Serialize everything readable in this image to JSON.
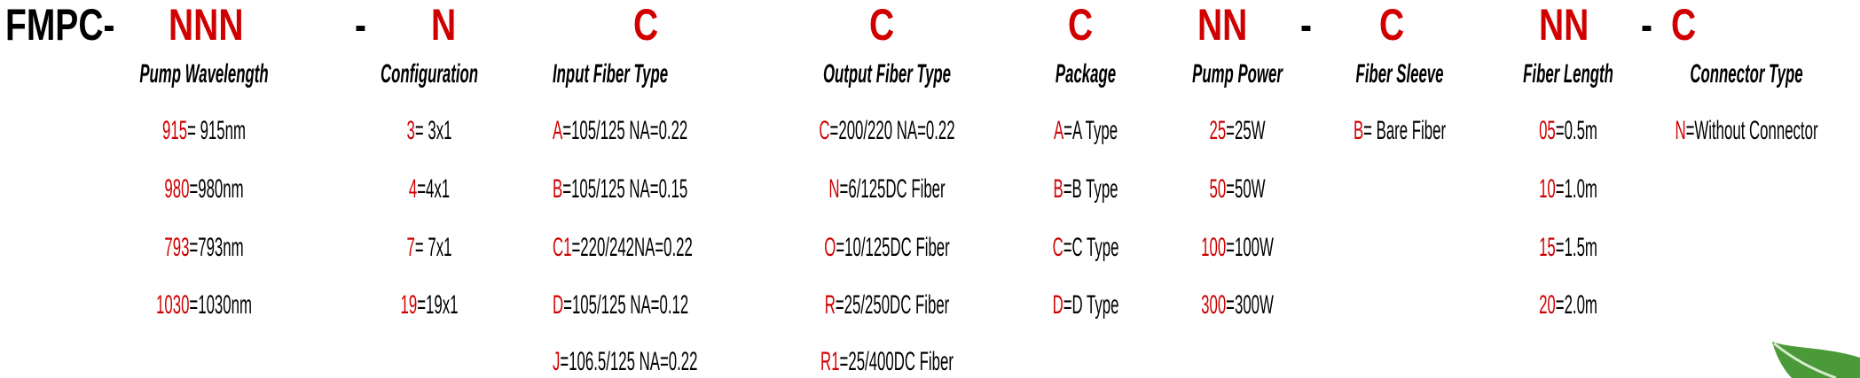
{
  "code_line": [
    {
      "text": "FMPC-",
      "color": "black"
    },
    {
      "text": "NNN",
      "color": "red"
    },
    {
      "text": "-",
      "color": "black"
    },
    {
      "text": "N",
      "color": "red"
    },
    {
      "text": "C",
      "color": "red"
    },
    {
      "text": "C",
      "color": "red"
    },
    {
      "text": "C",
      "color": "red"
    },
    {
      "text": "NN",
      "color": "red"
    },
    {
      "text": "-",
      "color": "black"
    },
    {
      "text": "C",
      "color": "red"
    },
    {
      "text": "NN",
      "color": "red"
    },
    {
      "text": "-",
      "color": "black"
    },
    {
      "text": "C",
      "color": "red"
    }
  ],
  "columns": [
    {
      "header": "Pump Wavelength",
      "items": [
        {
          "code": "915",
          "desc": "= 915nm"
        },
        {
          "code": "980",
          "desc": "=980nm"
        },
        {
          "code": "793",
          "desc": "=793nm"
        },
        {
          "code": "1030",
          "desc": "=1030nm"
        }
      ]
    },
    {
      "header": "Configuration",
      "items": [
        {
          "code": "3",
          "desc": "= 3x1"
        },
        {
          "code": "4",
          "desc": "=4x1"
        },
        {
          "code": "7",
          "desc": "= 7x1"
        },
        {
          "code": "19",
          "desc": "=19x1"
        }
      ]
    },
    {
      "header": "Input Fiber Type",
      "items": [
        {
          "code": "A",
          "desc": "=105/125 NA=0.22"
        },
        {
          "code": "B",
          "desc": "=105/125 NA=0.15"
        },
        {
          "code": "C1",
          "desc": "=220/242NA=0.22"
        },
        {
          "code": "D",
          "desc": "=105/125 NA=0.12"
        },
        {
          "code": "J",
          "desc": "=106.5/125 NA=0.22"
        }
      ]
    },
    {
      "header": "Output Fiber Type",
      "items": [
        {
          "code": "C",
          "desc": "=200/220 NA=0.22"
        },
        {
          "code": "N",
          "desc": "=6/125DC Fiber"
        },
        {
          "code": "O",
          "desc": "=10/125DC Fiber"
        },
        {
          "code": "R",
          "desc": "=25/250DC Fiber"
        },
        {
          "code": "R1",
          "desc": "=25/400DC Fiber"
        }
      ]
    },
    {
      "header": "Package",
      "items": [
        {
          "code": "A",
          "desc": "=A Type"
        },
        {
          "code": "B",
          "desc": "=B Type"
        },
        {
          "code": "C",
          "desc": "=C Type"
        },
        {
          "code": "D",
          "desc": "=D Type"
        }
      ]
    },
    {
      "header": "Pump Power",
      "items": [
        {
          "code": "25",
          "desc": "=25W"
        },
        {
          "code": "50",
          "desc": "=50W"
        },
        {
          "code": "100",
          "desc": "=100W"
        },
        {
          "code": "300",
          "desc": "=300W"
        }
      ]
    },
    {
      "header": "Fiber Sleeve",
      "items": [
        {
          "code": "B",
          "desc": "= Bare Fiber"
        }
      ]
    },
    {
      "header": "Fiber Length",
      "items": [
        {
          "code": "05",
          "desc": "=0.5m"
        },
        {
          "code": "10",
          "desc": "=1.0m"
        },
        {
          "code": "15",
          "desc": "=1.5m"
        },
        {
          "code": "20",
          "desc": "=2.0m"
        }
      ]
    },
    {
      "header": "Connector Type",
      "items": [
        {
          "code": "N",
          "desc": "=Without Connector"
        }
      ]
    }
  ],
  "colors": {
    "code": "#d00000",
    "text": "#000000",
    "leaf": "#4a9a3a"
  },
  "icons": {
    "corner": "leaf-icon"
  }
}
